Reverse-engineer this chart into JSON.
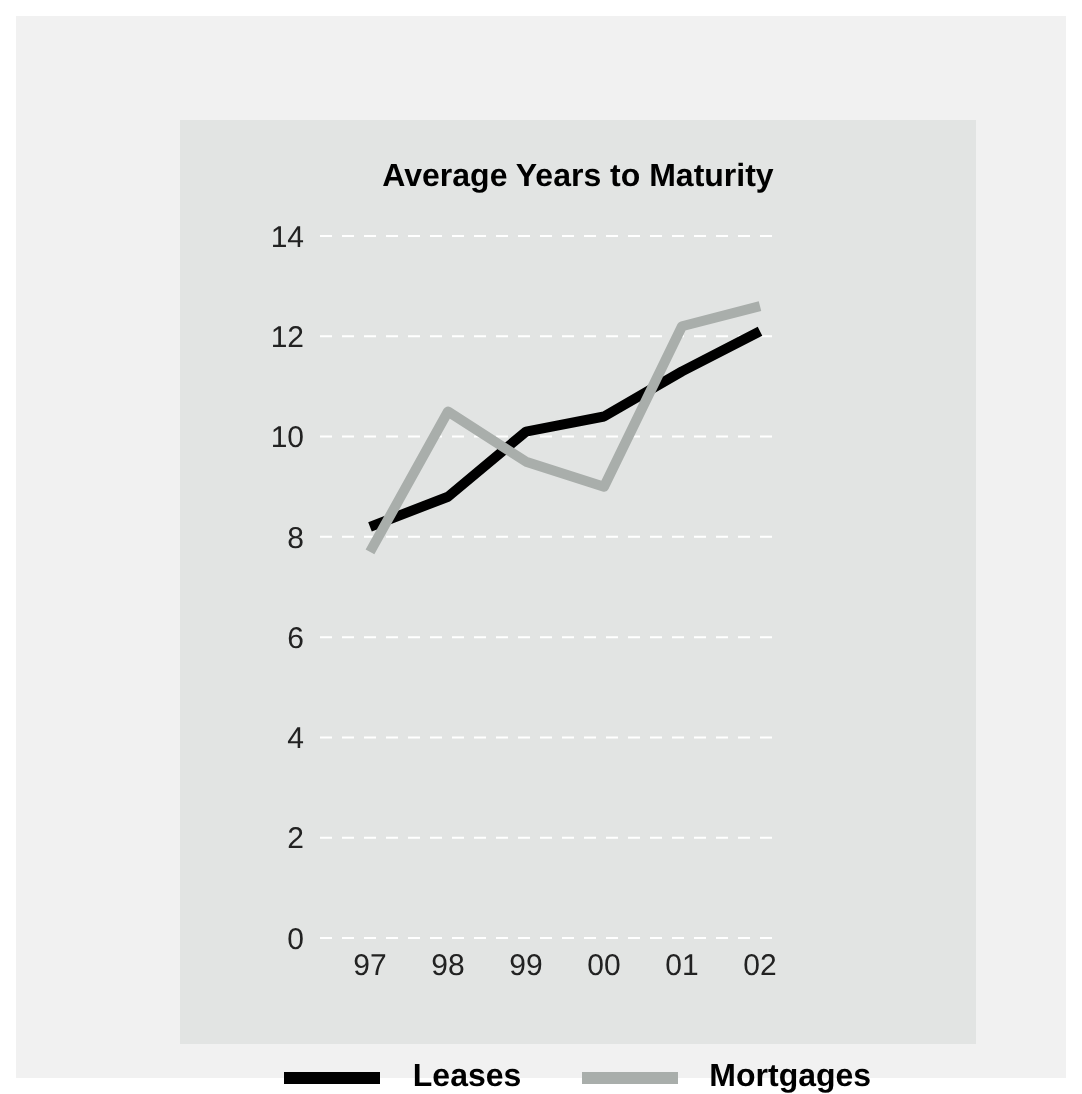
{
  "chart_data": {
    "type": "line",
    "title": "Average Years to Maturity",
    "categories": [
      "97",
      "98",
      "99",
      "00",
      "01",
      "02"
    ],
    "series": [
      {
        "name": "Leases",
        "color": "#000000",
        "values": [
          8.2,
          8.8,
          10.1,
          10.4,
          11.3,
          12.1
        ]
      },
      {
        "name": "Mortgages",
        "color": "#a9aeab",
        "values": [
          7.7,
          10.5,
          9.5,
          9.0,
          12.2,
          12.6
        ]
      }
    ],
    "ylim": [
      0,
      14
    ],
    "yticks": [
      0,
      2,
      4,
      6,
      8,
      10,
      12,
      14
    ],
    "grid": "y",
    "legend": "bottom",
    "marker": "none",
    "line_style": "solid"
  }
}
